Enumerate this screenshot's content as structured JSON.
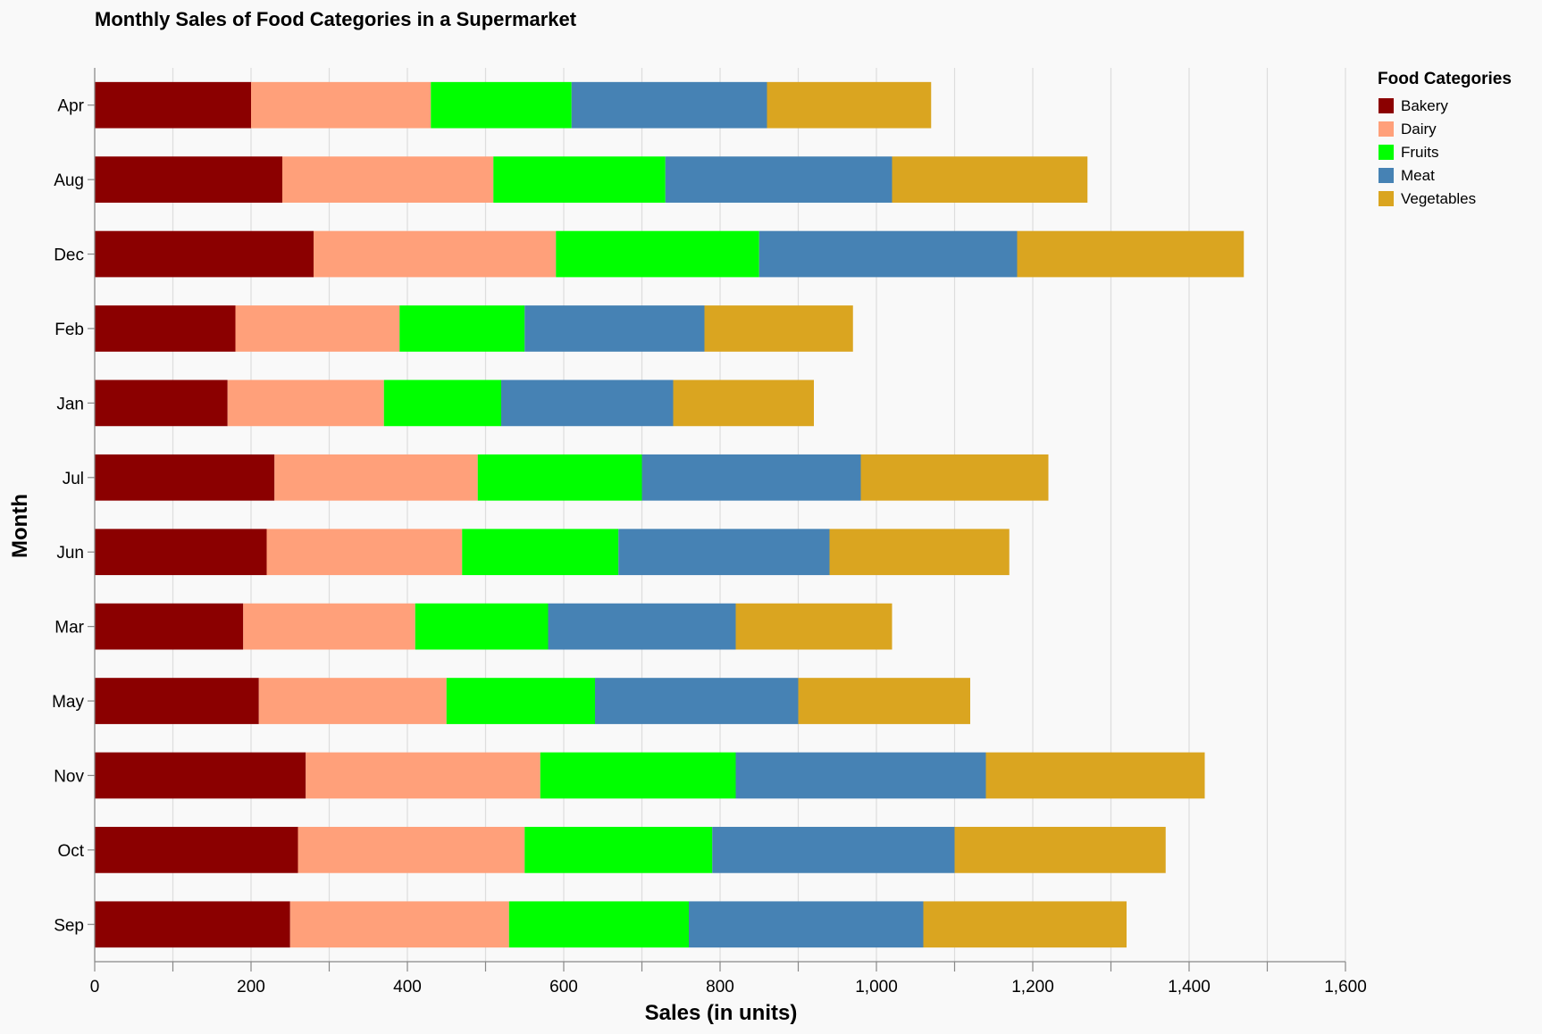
{
  "chart_data": {
    "type": "bar",
    "orientation": "horizontal",
    "stacked": true,
    "title": "Monthly Sales of Food Categories in a Supermarket",
    "xlabel": "Sales (in units)",
    "ylabel": "Month",
    "xlim": [
      0,
      1600
    ],
    "xticks": [
      "0",
      "200",
      "400",
      "600",
      "800",
      "1,000",
      "1,200",
      "1,400",
      "1,600"
    ],
    "grid": true,
    "legend_title": "Food Categories",
    "legend_position": "right",
    "categories": [
      "Apr",
      "Aug",
      "Dec",
      "Feb",
      "Jan",
      "Jul",
      "Jun",
      "Mar",
      "May",
      "Nov",
      "Oct",
      "Sep"
    ],
    "series": [
      {
        "name": "Bakery",
        "color": "#8b0000",
        "values": [
          200,
          240,
          280,
          180,
          170,
          230,
          220,
          190,
          210,
          270,
          260,
          250
        ]
      },
      {
        "name": "Dairy",
        "color": "#ffa07a",
        "values": [
          230,
          270,
          310,
          210,
          200,
          260,
          250,
          220,
          240,
          300,
          290,
          280
        ]
      },
      {
        "name": "Fruits",
        "color": "#00ff00",
        "values": [
          180,
          220,
          260,
          160,
          150,
          210,
          200,
          170,
          190,
          250,
          240,
          230
        ]
      },
      {
        "name": "Meat",
        "color": "#4682b4",
        "values": [
          250,
          290,
          330,
          230,
          220,
          280,
          270,
          240,
          260,
          320,
          310,
          300
        ]
      },
      {
        "name": "Vegetables",
        "color": "#daa520",
        "values": [
          210,
          250,
          290,
          190,
          180,
          240,
          230,
          200,
          220,
          280,
          270,
          260
        ]
      }
    ]
  }
}
